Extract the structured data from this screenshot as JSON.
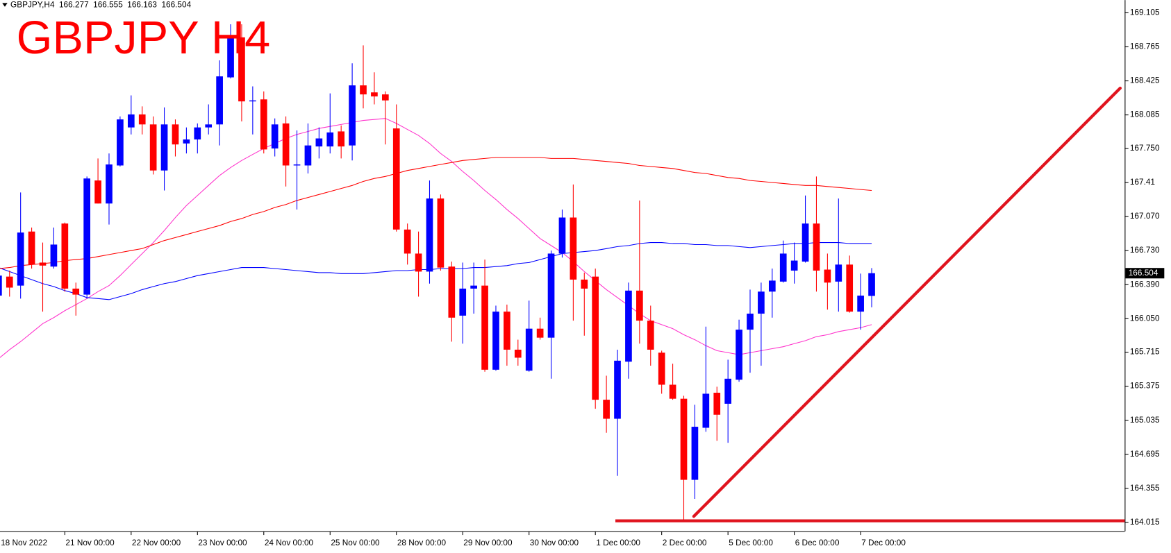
{
  "chart_data": {
    "type": "candlestick",
    "symbol": "GBPJPY,H4",
    "title": "GBPJPY H4",
    "up_color": "#0000ff",
    "down_color": "#ff0000",
    "title_color": "#ff0000",
    "categories": [
      "18 Nov 2022",
      null,
      null,
      null,
      null,
      null,
      "21 Nov 00:00",
      null,
      null,
      null,
      null,
      null,
      "22 Nov 00:00",
      null,
      null,
      null,
      null,
      null,
      "23 Nov 00:00",
      null,
      null,
      null,
      null,
      null,
      "24 Nov 00:00",
      null,
      null,
      null,
      null,
      null,
      "25 Nov 00:00",
      null,
      null,
      null,
      null,
      null,
      "28 Nov 00:00",
      null,
      null,
      null,
      null,
      null,
      "29 Nov 00:00",
      null,
      null,
      null,
      null,
      null,
      "30 Nov 00:00",
      null,
      null,
      null,
      null,
      null,
      "1 Dec 00:00",
      null,
      null,
      null,
      null,
      null,
      "2 Dec 00:00",
      null,
      null,
      null,
      null,
      null,
      "5 Dec 00:00",
      null,
      null,
      null,
      null,
      null,
      "6 Dec 00:00",
      null,
      null,
      null,
      null,
      null,
      "7 Dec 00:00",
      null
    ],
    "candles": [
      [
        166.28,
        166.55,
        166.25,
        166.48
      ],
      [
        166.47,
        166.53,
        166.27,
        166.36
      ],
      [
        166.38,
        167.31,
        166.25,
        166.91
      ],
      [
        166.92,
        166.96,
        166.55,
        166.59
      ],
      [
        166.61,
        166.81,
        166.12,
        166.58
      ],
      [
        166.57,
        166.96,
        166.55,
        166.79
      ],
      [
        167.0,
        167.01,
        166.32,
        166.35
      ],
      [
        166.35,
        166.41,
        166.08,
        166.29
      ],
      [
        166.29,
        167.47,
        166.25,
        167.45
      ],
      [
        167.43,
        167.65,
        167.2,
        167.2
      ],
      [
        167.2,
        167.7,
        166.99,
        167.59
      ],
      [
        167.58,
        168.07,
        167.57,
        168.04
      ],
      [
        167.96,
        168.28,
        167.89,
        168.09
      ],
      [
        168.09,
        168.17,
        167.89,
        167.99
      ],
      [
        167.99,
        168.07,
        167.49,
        167.53
      ],
      [
        167.53,
        168.16,
        167.33,
        167.99
      ],
      [
        167.99,
        168.04,
        167.67,
        167.79
      ],
      [
        167.8,
        167.96,
        167.7,
        167.84
      ],
      [
        167.84,
        168.0,
        167.7,
        167.96
      ],
      [
        167.96,
        168.19,
        167.89,
        167.99
      ],
      [
        167.99,
        168.63,
        167.78,
        168.47
      ],
      [
        168.46,
        168.99,
        168.45,
        168.86
      ],
      [
        168.86,
        168.99,
        168.02,
        168.22
      ],
      [
        168.22,
        168.37,
        167.89,
        168.23
      ],
      [
        168.24,
        168.32,
        167.7,
        167.74
      ],
      [
        167.75,
        168.05,
        167.67,
        167.99
      ],
      [
        168.0,
        168.07,
        167.37,
        167.58
      ],
      [
        167.58,
        167.93,
        167.14,
        167.59
      ],
      [
        167.58,
        168.0,
        167.5,
        167.78
      ],
      [
        167.77,
        167.96,
        167.65,
        167.85
      ],
      [
        167.77,
        168.3,
        167.7,
        167.91
      ],
      [
        167.92,
        167.98,
        167.65,
        167.77
      ],
      [
        167.78,
        168.6,
        167.63,
        168.38
      ],
      [
        168.38,
        168.78,
        168.15,
        168.29
      ],
      [
        168.31,
        168.51,
        168.19,
        168.27
      ],
      [
        168.29,
        168.32,
        167.79,
        168.23
      ],
      [
        167.95,
        168.19,
        166.92,
        166.94
      ],
      [
        166.94,
        167.0,
        166.59,
        166.7
      ],
      [
        166.7,
        166.92,
        166.27,
        166.52
      ],
      [
        166.52,
        167.43,
        166.4,
        167.25
      ],
      [
        167.25,
        167.29,
        166.53,
        166.56
      ],
      [
        166.57,
        166.62,
        165.82,
        166.06
      ],
      [
        166.08,
        166.61,
        165.8,
        166.35
      ],
      [
        166.35,
        166.61,
        166.1,
        166.38
      ],
      [
        166.38,
        166.64,
        165.52,
        165.54
      ],
      [
        165.54,
        166.18,
        165.53,
        166.12
      ],
      [
        166.12,
        166.19,
        165.58,
        165.74
      ],
      [
        165.74,
        165.84,
        165.58,
        165.66
      ],
      [
        165.53,
        166.23,
        165.52,
        165.95
      ],
      [
        165.95,
        166.06,
        165.84,
        165.86
      ],
      [
        165.86,
        166.73,
        165.45,
        166.7
      ],
      [
        166.7,
        167.14,
        166.66,
        167.06
      ],
      [
        167.06,
        167.39,
        166.03,
        166.44
      ],
      [
        166.44,
        166.51,
        165.88,
        166.35
      ],
      [
        166.47,
        166.55,
        165.15,
        165.24
      ],
      [
        165.24,
        165.48,
        164.91,
        165.05
      ],
      [
        165.05,
        165.74,
        164.48,
        165.63
      ],
      [
        165.62,
        166.41,
        165.45,
        166.33
      ],
      [
        166.33,
        167.23,
        165.8,
        166.03
      ],
      [
        166.03,
        166.18,
        165.58,
        165.74
      ],
      [
        165.71,
        165.73,
        165.3,
        165.39
      ],
      [
        165.39,
        165.6,
        165.24,
        165.25
      ],
      [
        165.25,
        165.28,
        164.04,
        164.44
      ],
      [
        164.44,
        165.19,
        164.25,
        164.97
      ],
      [
        164.96,
        165.97,
        164.92,
        165.3
      ],
      [
        165.31,
        165.37,
        164.83,
        165.09
      ],
      [
        165.2,
        165.64,
        164.81,
        165.45
      ],
      [
        165.44,
        166.04,
        165.42,
        165.94
      ],
      [
        165.94,
        166.34,
        165.51,
        166.1
      ],
      [
        166.1,
        166.41,
        165.58,
        166.32
      ],
      [
        166.32,
        166.55,
        166.06,
        166.43
      ],
      [
        166.42,
        166.83,
        166.41,
        166.7
      ],
      [
        166.53,
        166.81,
        166.4,
        166.63
      ],
      [
        166.62,
        167.28,
        166.61,
        167.0
      ],
      [
        167.0,
        167.47,
        166.32,
        166.53
      ],
      [
        166.54,
        166.7,
        166.14,
        166.41
      ],
      [
        166.42,
        167.25,
        166.12,
        166.59
      ],
      [
        166.59,
        166.68,
        166.11,
        166.12
      ],
      [
        166.12,
        166.5,
        165.94,
        166.28
      ],
      [
        166.277,
        166.555,
        166.163,
        166.504
      ]
    ],
    "series": [
      {
        "color": "#ff33cc",
        "values": [
          165.65,
          165.74,
          165.82,
          165.91,
          166.0,
          166.06,
          166.13,
          166.19,
          166.25,
          166.32,
          166.38,
          166.48,
          166.59,
          166.7,
          166.81,
          166.93,
          167.06,
          167.18,
          167.28,
          167.38,
          167.48,
          167.56,
          167.63,
          167.69,
          167.75,
          167.8,
          167.85,
          167.89,
          167.92,
          167.95,
          167.97,
          167.99,
          168.01,
          168.03,
          168.04,
          168.05,
          168.0,
          167.94,
          167.88,
          167.8,
          167.7,
          167.62,
          167.52,
          167.43,
          167.33,
          167.24,
          167.14,
          167.05,
          166.95,
          166.85,
          166.78,
          166.71,
          166.62,
          166.52,
          166.43,
          166.34,
          166.26,
          166.18,
          166.1,
          166.03,
          165.99,
          165.95,
          165.89,
          165.84,
          165.78,
          165.73,
          165.71,
          165.69,
          165.71,
          165.73,
          165.75,
          165.77,
          165.8,
          165.83,
          165.87,
          165.89,
          165.92,
          165.94,
          165.96,
          165.99
        ]
      },
      {
        "color": "#0000ff",
        "values": [
          166.56,
          166.52,
          166.48,
          166.44,
          166.4,
          166.37,
          166.33,
          166.3,
          166.26,
          166.25,
          166.24,
          166.27,
          166.3,
          166.34,
          166.37,
          166.4,
          166.42,
          166.45,
          166.48,
          166.5,
          166.52,
          166.54,
          166.56,
          166.56,
          166.56,
          166.55,
          166.54,
          166.53,
          166.52,
          166.51,
          166.51,
          166.5,
          166.5,
          166.5,
          166.51,
          166.52,
          166.53,
          166.53,
          166.54,
          166.54,
          166.55,
          166.55,
          166.55,
          166.56,
          166.56,
          166.57,
          166.58,
          166.6,
          166.61,
          166.64,
          166.67,
          166.7,
          166.71,
          166.72,
          166.73,
          166.75,
          166.77,
          166.78,
          166.8,
          166.81,
          166.81,
          166.8,
          166.8,
          166.79,
          166.79,
          166.78,
          166.78,
          166.77,
          166.76,
          166.77,
          166.78,
          166.79,
          166.8,
          166.8,
          166.81,
          166.81,
          166.81,
          166.8,
          166.8,
          166.8
        ]
      },
      {
        "color": "#ff0000",
        "values": [
          166.55,
          166.56,
          166.58,
          166.59,
          166.6,
          166.61,
          166.63,
          166.64,
          166.65,
          166.67,
          166.69,
          166.71,
          166.73,
          166.75,
          166.79,
          166.83,
          166.86,
          166.89,
          166.92,
          166.95,
          166.98,
          167.02,
          167.05,
          167.09,
          167.12,
          167.16,
          167.19,
          167.23,
          167.26,
          167.29,
          167.32,
          167.35,
          167.38,
          167.42,
          167.45,
          167.47,
          167.5,
          167.53,
          167.55,
          167.57,
          167.59,
          167.61,
          167.63,
          167.64,
          167.65,
          167.66,
          167.66,
          167.66,
          167.66,
          167.66,
          167.65,
          167.65,
          167.65,
          167.64,
          167.63,
          167.62,
          167.61,
          167.6,
          167.58,
          167.57,
          167.56,
          167.55,
          167.53,
          167.51,
          167.5,
          167.48,
          167.46,
          167.45,
          167.43,
          167.42,
          167.41,
          167.4,
          167.39,
          167.38,
          167.38,
          167.37,
          167.36,
          167.35,
          167.34,
          167.33
        ]
      }
    ],
    "ylim": [
      163.926,
      169.232
    ],
    "yticks": [
      169.105,
      168.765,
      168.425,
      168.085,
      {
        "value": 167.75,
        "label": "167.750"
      },
      167.41,
      {
        "value": 167.07,
        "label": "167.070"
      },
      {
        "value": 166.73,
        "label": "166.730"
      },
      {
        "value": 166.39,
        "label": "166.390"
      },
      {
        "value": 166.05,
        "label": "166.050"
      },
      165.715,
      165.375,
      165.035,
      164.695,
      164.355,
      164.015
    ],
    "grid": false
  }
}
